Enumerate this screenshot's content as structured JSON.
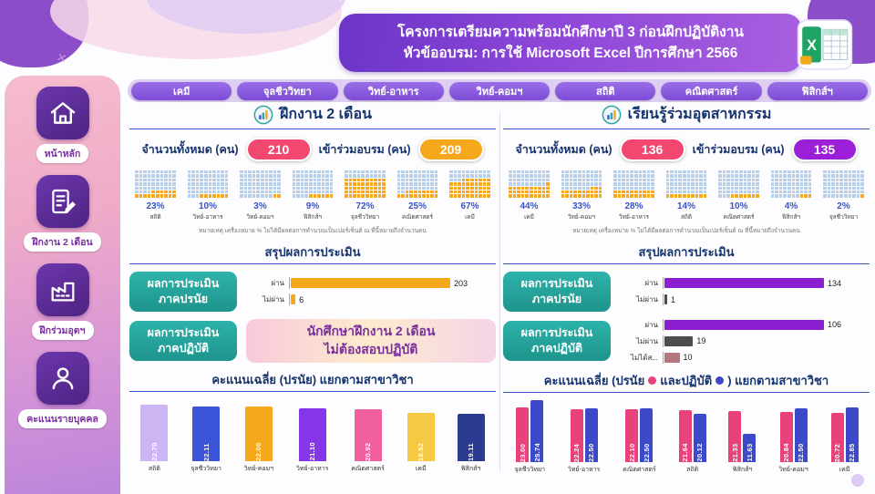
{
  "header": {
    "title_line1": "โครงการเตรียมความพร้อมนักศึกษาปี 3 ก่อนฝึกปฏิบัติงาน",
    "title_line2": "หัวข้ออบรม: การใช้ Microsoft Excel ปีการศึกษา 2566"
  },
  "sidebar": {
    "items": [
      {
        "id": "home",
        "icon": "home",
        "label": "หน้าหลัก"
      },
      {
        "id": "internship",
        "icon": "report",
        "label": "ฝึกงาน 2 เดือน"
      },
      {
        "id": "industry",
        "icon": "factory",
        "label": "ฝึกร่วมอุตฯ"
      },
      {
        "id": "individual",
        "icon": "person",
        "label": "คะแนนรายบุคคล"
      }
    ]
  },
  "nav_tabs": [
    {
      "id": "chemistry",
      "label": "เคมี"
    },
    {
      "id": "microbiology",
      "label": "จุลชีววิทยา"
    },
    {
      "id": "food-science",
      "label": "วิทย์-อาหาร"
    },
    {
      "id": "computer-science",
      "label": "วิทย์-คอมฯ"
    },
    {
      "id": "statistics",
      "label": "สถิติ"
    },
    {
      "id": "mathematics",
      "label": "คณิตศาสตร์"
    },
    {
      "id": "physics",
      "label": "ฟิสิกส์ฯ"
    }
  ],
  "left_panel": {
    "title": "ฝึกงาน 2 เดือน",
    "kpis": [
      {
        "label": "จำนวนทั้งหมด (คน)",
        "value": "210",
        "color": "#f2476e"
      },
      {
        "label": "เข้าร่วมอบรม (คน)",
        "value": "209",
        "color": "#f5a81c"
      }
    ],
    "note": "หมายเหตุ เครื่องหมาย % ไม่ได้มีผลต่อการคำนวณเป็นเปอร์เซ็นต์ ณ ที่นี้หมายถึงจำนวนคน",
    "summary_title": "สรุปผลการประเมิน",
    "objective_box_line1": "ผลการประเมิน",
    "objective_box_line2": "ภาคปรนัย",
    "practical_box_line1": "ผลการประเมิน",
    "practical_box_line2": "ภาคปฏิบัติ",
    "practical_msg_line1": "นักศึกษาฝึกงาน 2 เดือน",
    "practical_msg_line2": "ไม่ต้องสอบปฏิบัติ",
    "avg_title": "คะแนนเฉลี่ย (ปรนัย) แยกตามสาขาวิชา"
  },
  "right_panel": {
    "title": "เรียนรู้ร่วมอุตสาหกรรม",
    "kpis": [
      {
        "label": "จำนวนทั้งหมด (คน)",
        "value": "136",
        "color": "#f2476e"
      },
      {
        "label": "เข้าร่วมอบรม (คน)",
        "value": "135",
        "color": "#9b1fd6"
      }
    ],
    "note": "หมายเหตุ เครื่องหมาย % ไม่ได้มีผลต่อการคำนวณเป็นเปอร์เซ็นต์ ณ ที่นี้หมายถึงจำนวนคน",
    "summary_title": "สรุปผลการประเมิน",
    "objective_box_line1": "ผลการประเมิน",
    "objective_box_line2": "ภาคปรนัย",
    "practical_box_line1": "ผลการประเมิน",
    "practical_box_line2": "ภาคปฏิบัติ",
    "avg_title_pre": "คะแนนเฉลี่ย (ปรนัย",
    "avg_title_mid": "และปฏิบัติ",
    "avg_title_post": ") แยกตามสาขาวิชา"
  },
  "chart_data": [
    {
      "id": "left_attendance_waffle",
      "type": "heatmap",
      "style": "waffle",
      "title": "ฝึกงาน 2 เดือน – เข้าร่วมอบรมแยกตามสาขา (จำนวนคน)",
      "categories": [
        "สถิติ",
        "วิทย์-อาหาร",
        "วิทย์-คอมฯ",
        "ฟิสิกส์ฯ",
        "จุลชีววิทยา",
        "คณิตศาสตร์",
        "เคมี"
      ],
      "values": [
        23,
        10,
        3,
        9,
        72,
        25,
        67
      ],
      "value_suffix": "%",
      "filled_color": "#f5a81c",
      "empty_color": "#b7cfe8"
    },
    {
      "id": "right_attendance_waffle",
      "type": "heatmap",
      "style": "waffle",
      "title": "เรียนรู้ร่วมอุตสาหกรรม – เข้าร่วมอบรมแยกตามสาขา (จำนวนคน)",
      "categories": [
        "เคมี",
        "วิทย์-คอมฯ",
        "วิทย์-อาหาร",
        "สถิติ",
        "คณิตศาสตร์",
        "ฟิสิกส์ฯ",
        "จุลชีววิทยา"
      ],
      "values": [
        44,
        33,
        28,
        14,
        10,
        4,
        2
      ],
      "value_suffix": "%",
      "filled_color": "#f5a81c",
      "empty_color": "#b7cfe8"
    },
    {
      "id": "left_objective_result",
      "type": "bar",
      "orientation": "horizontal",
      "title": "ผลการประเมินภาคปรนัย",
      "categories": [
        "ผ่าน",
        "ไม่ผ่าน"
      ],
      "values": [
        203,
        6
      ],
      "colors": [
        "#f5a81c",
        "#f5a81c"
      ]
    },
    {
      "id": "right_objective_result",
      "type": "bar",
      "orientation": "horizontal",
      "title": "ผลการประเมินภาคปรนัย",
      "categories": [
        "ผ่าน",
        "ไม่ผ่าน"
      ],
      "values": [
        134,
        1
      ],
      "colors": [
        "#8b1fd0",
        "#4d4d4d"
      ]
    },
    {
      "id": "right_practical_result",
      "type": "bar",
      "orientation": "horizontal",
      "title": "ผลการประเมินภาคปฏิบัติ",
      "categories": [
        "ผ่าน",
        "ไม่ผ่าน",
        "ไม่ได้ส..."
      ],
      "values": [
        106,
        19,
        10
      ],
      "colors": [
        "#8b1fd0",
        "#4d4d4d",
        "#b3777d"
      ]
    },
    {
      "id": "left_avg_scores",
      "type": "bar",
      "title": "คะแนนเฉลี่ย (ปรนัย) แยกตามสาขาวิชา",
      "categories": [
        "สถิติ",
        "จุลชีววิทยา",
        "วิทย์-คอมฯ",
        "วิทย์-อาหาร",
        "คณิตศาสตร์",
        "เคมี",
        "ฟิสิกส์ฯ"
      ],
      "values": [
        22.7,
        22.11,
        22.0,
        21.1,
        20.92,
        19.52,
        19.11
      ],
      "labels": [
        "22.70",
        "22.11",
        "22.00",
        "21.10",
        "20.92",
        "19.52",
        "19.11"
      ],
      "colors": [
        "#cdb4f2",
        "#3c55d8",
        "#f5a81c",
        "#8436e8",
        "#f0609e",
        "#f6c944",
        "#2b3b8f"
      ],
      "ylim": [
        0,
        25
      ]
    },
    {
      "id": "right_avg_scores",
      "type": "bar",
      "title": "คะแนนเฉลี่ย (ปรนัย และปฏิบัติ) แยกตามสาขาวิชา",
      "categories": [
        "จุลชีววิทยา",
        "วิทย์-อาหาร",
        "คณิตศาสตร์",
        "สถิติ",
        "ฟิสิกส์ฯ",
        "วิทย์-คอมฯ",
        "เคมี"
      ],
      "series": [
        {
          "name": "ปรนัย",
          "color": "#e8417c",
          "values": [
            23.0,
            22.24,
            22.1,
            21.64,
            21.33,
            20.84,
            20.72
          ],
          "labels": [
            "23.00",
            "22.24",
            "22.10",
            "21.64",
            "21.33",
            "20.84",
            "20.72"
          ]
        },
        {
          "name": "ปฏิบัติ",
          "color": "#3c49c8",
          "values": [
            25.74,
            22.5,
            22.5,
            20.12,
            11.63,
            22.5,
            22.85
          ],
          "labels": [
            "25.74",
            "22.50",
            "22.50",
            "20.12",
            "11.63",
            "22.50",
            "22.85"
          ]
        }
      ],
      "ylim": [
        0,
        26
      ]
    }
  ]
}
